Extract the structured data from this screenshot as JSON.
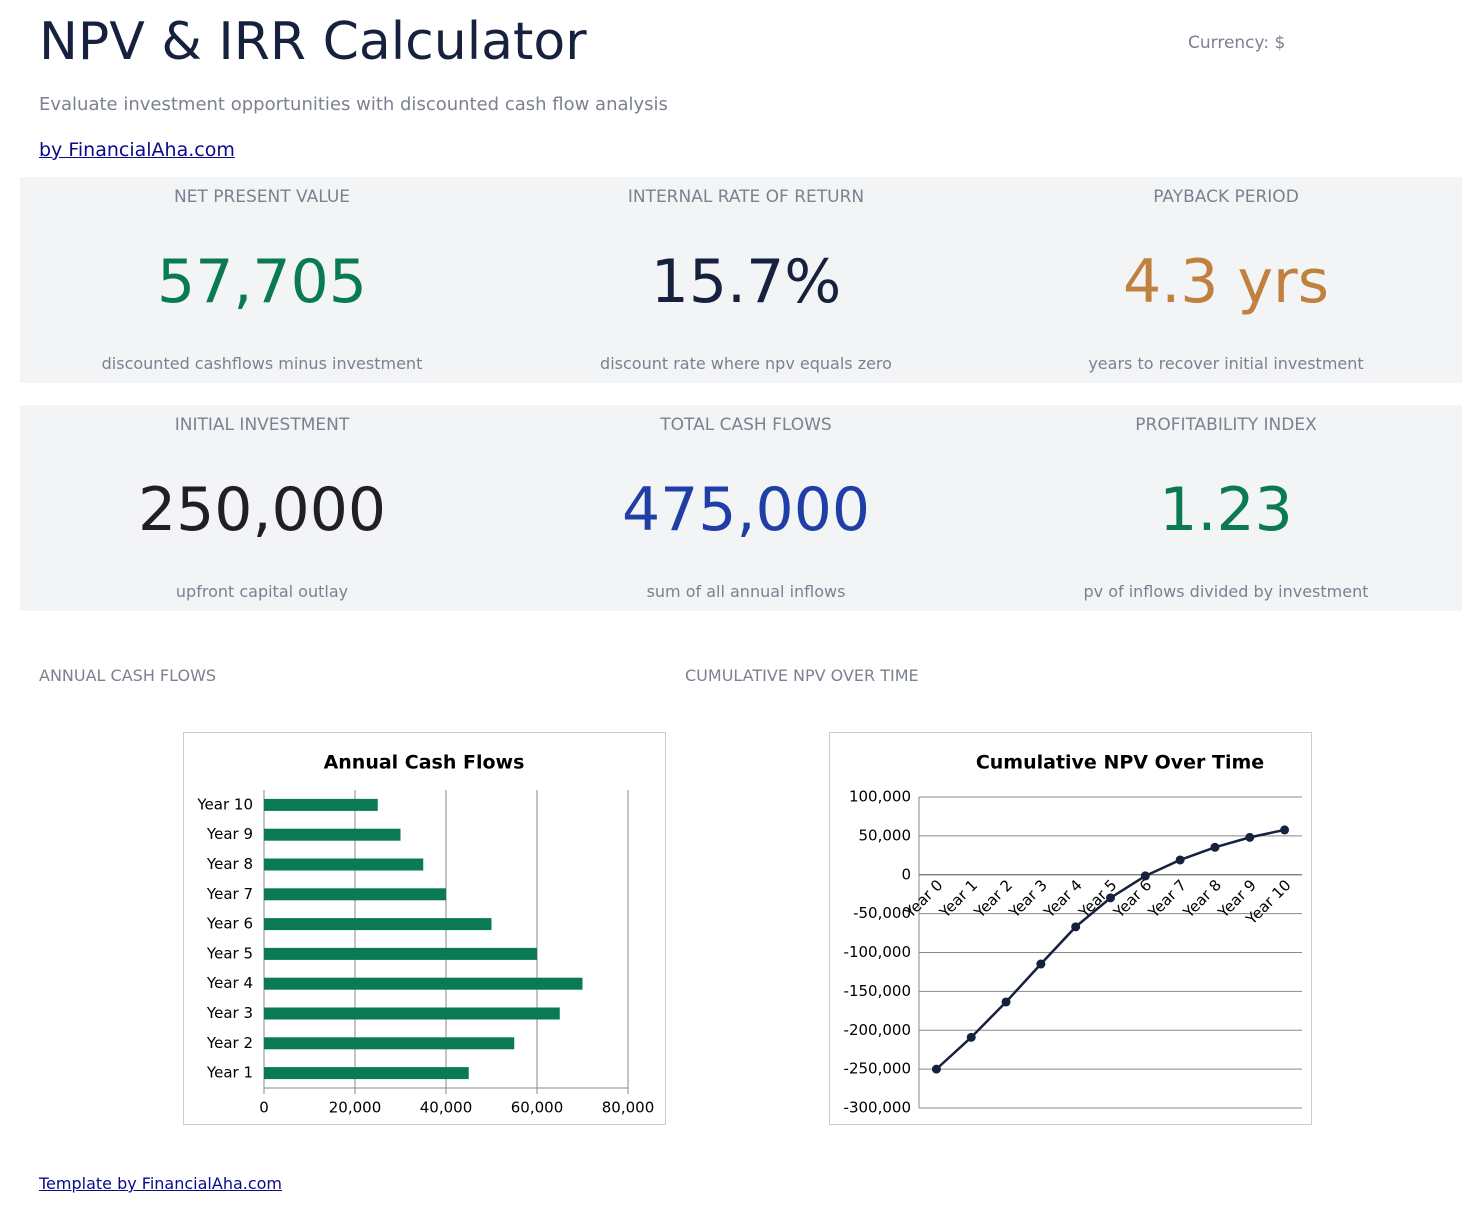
{
  "header": {
    "title": "NPV & IRR Calculator",
    "currency": "Currency: $",
    "subtitle": "Evaluate investment opportunities with discounted cash flow analysis",
    "link": "by FinancialAha.com"
  },
  "cards": [
    [
      {
        "label": "NET PRESENT VALUE",
        "value": "57,705",
        "note": "discounted cashflows minus investment",
        "color": "#0a7a55"
      },
      {
        "label": "INTERNAL RATE OF RETURN",
        "value": "15.7%",
        "note": "discount rate where npv equals zero",
        "color": "#16213e"
      },
      {
        "label": "PAYBACK PERIOD",
        "value": "4.3 yrs",
        "note": "years to recover initial investment",
        "color": "#c0803f"
      }
    ],
    [
      {
        "label": "INITIAL INVESTMENT",
        "value": "250,000",
        "note": "upfront capital outlay",
        "color": "#1f1f24"
      },
      {
        "label": "TOTAL CASH FLOWS",
        "value": "475,000",
        "note": "sum of all annual inflows",
        "color": "#1f3fa6"
      },
      {
        "label": "PROFITABILITY INDEX",
        "value": "1.23",
        "note": "pv of inflows divided by investment",
        "color": "#0a7a55"
      }
    ]
  ],
  "sections": [
    "ANNUAL CASH FLOWS",
    "CUMULATIVE NPV OVER TIME"
  ],
  "chart_data": [
    {
      "type": "bar",
      "orientation": "horizontal",
      "title": "Annual Cash Flows",
      "categories": [
        "Year 1",
        "Year 2",
        "Year 3",
        "Year 4",
        "Year 5",
        "Year 6",
        "Year 7",
        "Year 8",
        "Year 9",
        "Year 10"
      ],
      "values": [
        45000,
        55000,
        65000,
        70000,
        60000,
        50000,
        40000,
        35000,
        30000,
        25000
      ],
      "color": "#0a7a55",
      "xlim": [
        0,
        80000
      ],
      "xticks": [
        0,
        {
          "value": 20000,
          "label": "20,000"
        },
        {
          "value": 40000,
          "label": "40,000"
        },
        {
          "value": 60000,
          "label": "60,000"
        },
        {
          "value": 80000,
          "label": "80,000"
        }
      ],
      "grid": true
    },
    {
      "type": "line",
      "title": "Cumulative NPV Over Time",
      "categories": [
        "Year 0",
        "Year 1",
        "Year 2",
        "Year 3",
        "Year 4",
        "Year 5",
        "Year 6",
        "Year 7",
        "Year 8",
        "Year 9",
        "Year 10"
      ],
      "values": [
        -250000,
        -209091,
        -163636,
        -114801,
        -66990,
        -29735,
        -1511,
        19015,
        35343,
        48066,
        57705
      ],
      "color": "#16213e",
      "ylim": [
        -300000,
        100000
      ],
      "yticks": [
        {
          "value": -300000,
          "label": "-300,000"
        },
        {
          "value": -250000,
          "label": "-250,000"
        },
        {
          "value": -200000,
          "label": "-200,000"
        },
        {
          "value": -150000,
          "label": "-150,000"
        },
        {
          "value": -100000,
          "label": "-100,000"
        },
        {
          "value": -50000,
          "label": "-50,000"
        },
        0,
        {
          "value": 50000,
          "label": "50,000"
        },
        {
          "value": 100000,
          "label": "100,000"
        }
      ],
      "grid": true
    }
  ],
  "footer": "Template by FinancialAha.com"
}
